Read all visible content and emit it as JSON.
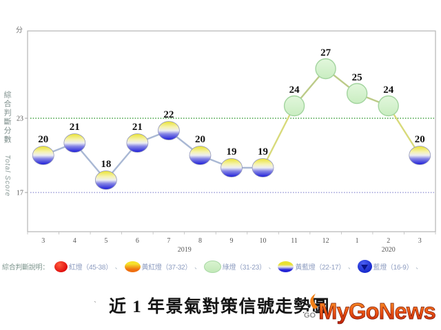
{
  "chart": {
    "unit_label": "分",
    "y_axis_title": "綜合判斷分數",
    "y_axis_subtitle": "Total Score",
    "year_labels": [
      {
        "text": "2019",
        "index": 4.5
      },
      {
        "text": "2020",
        "index": 11
      }
    ]
  },
  "chart_data": {
    "type": "line",
    "title": "近 1 年景氣對策信號走勢圖",
    "x_tick_labels": [
      "3",
      "4",
      "5",
      "6",
      "7",
      "8",
      "9",
      "10",
      "11",
      "12",
      "1",
      "2",
      "3"
    ],
    "values": [
      20,
      21,
      18,
      21,
      22,
      20,
      19,
      19,
      24,
      27,
      25,
      24,
      20
    ],
    "light_types": [
      "yellowblue",
      "yellowblue",
      "yellowblue",
      "yellowblue",
      "yellowblue",
      "yellowblue",
      "yellowblue",
      "yellowblue",
      "green",
      "green",
      "green",
      "green",
      "yellowblue"
    ],
    "xlabel": "",
    "ylabel": "綜合判斷分數 (Total Score)",
    "ylim": [
      14,
      30
    ],
    "y_tick_labels": [
      "23",
      "17"
    ],
    "reference_lines": [
      {
        "value": 23,
        "color": "#3c9e3c",
        "style": "dotted"
      },
      {
        "value": 17,
        "color": "#9b9bd8",
        "style": "dotted"
      }
    ],
    "grid": false,
    "legend_position": "bottom",
    "marker_colors": {
      "green_fill_top": "#e2f7dc",
      "green_fill_bottom": "#c9edc1",
      "green_stroke": "#a2d49e",
      "yellowblue_top": "#e9e232",
      "yellowblue_mid": "#ecedf2",
      "yellowblue_bottom": "#1d1dd8",
      "yellowblue_stroke": "#8f93bb"
    },
    "line_colors": {
      "blue_zone": "#a9b8d4",
      "transition": "#d8da7a",
      "green_zone": "#bccb88"
    },
    "label_color": "#111111",
    "axis_text_color": "#555555"
  },
  "legend": {
    "intro": "綜合判斷說明：",
    "separator": "、",
    "items": [
      {
        "label": "紅燈",
        "range": "（45-38）",
        "type": "red",
        "colors": [
          "#ff5a3c",
          "#df0d0d"
        ]
      },
      {
        "label": "黃紅燈",
        "range": "（37-32）",
        "type": "yellowred",
        "colors": [
          "#f6e22b",
          "#ef7011"
        ]
      },
      {
        "label": "綠燈",
        "range": "（31-23）",
        "type": "green",
        "colors": [
          "#d9f3d0",
          "#c2e9b8"
        ]
      },
      {
        "label": "黃藍燈",
        "range": "（22-17）",
        "type": "yellowblue",
        "colors": [
          "#e9e232",
          "#2525d5"
        ]
      },
      {
        "label": "藍燈",
        "range": "（16-9）",
        "type": "blue",
        "colors": [
          "#4a5ff2",
          "#1426c9"
        ]
      }
    ]
  },
  "footer": {
    "pre_mark": "`",
    "title": "近 1 年景氣對策信號走勢圖"
  },
  "logo": {
    "text": "MyGoNews",
    "sub": "GO",
    "gradient": [
      "#f6a12c",
      "#ee5816",
      "#bb1f06"
    ]
  }
}
